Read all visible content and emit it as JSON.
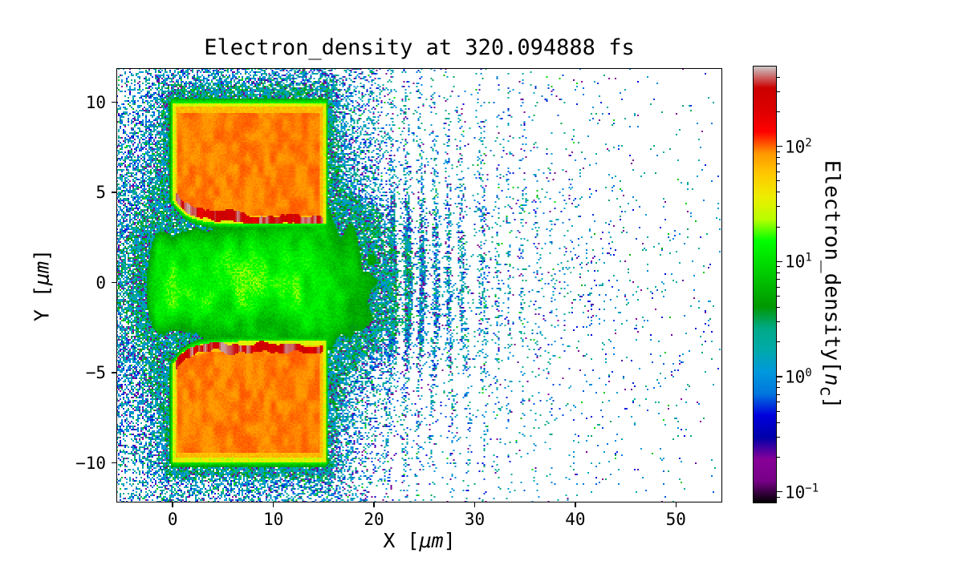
{
  "chart_data": {
    "type": "heatmap",
    "title": "Electron_density at 320.094888 fs",
    "xlabel": "X [μm]",
    "ylabel": "Y [μm]",
    "xlabel_parts": {
      "pre": "X [",
      "unit": "μm",
      "post": "]"
    },
    "ylabel_parts": {
      "pre": "Y [",
      "unit": "μm",
      "post": "]"
    },
    "xlim": [
      -5.6,
      54.6
    ],
    "ylim": [
      -12.2,
      11.9
    ],
    "xticks": [
      0,
      10,
      20,
      30,
      40,
      50
    ],
    "xtick_labels": [
      "0",
      "10",
      "20",
      "30",
      "40",
      "50"
    ],
    "yticks": [
      -10,
      -5,
      0,
      5,
      10
    ],
    "ytick_labels": [
      "−10",
      "−5",
      "0",
      "5",
      "10"
    ],
    "grid": false,
    "colorbar": {
      "label": "Electron_density[n_c]",
      "label_parts": {
        "pre": "Electron_density[",
        "sym": "n",
        "sub": "c",
        "post": "]"
      },
      "scale": "log",
      "colormap": "nipy_spectral",
      "log_range": [
        -1.1,
        2.7
      ],
      "ticks": [
        {
          "value": -1,
          "base": "10",
          "exp": "−1"
        },
        {
          "value": 0,
          "base": "10",
          "exp": "0"
        },
        {
          "value": 1,
          "base": "10",
          "exp": "1"
        },
        {
          "value": 2,
          "base": "10",
          "exp": "2"
        }
      ]
    },
    "sim": {
      "slab_x": [
        0,
        15.2
      ],
      "slab_y_outer": 9.95,
      "edge_base": 3.25,
      "edge_flare": 1.3,
      "edge_scale": 1.4,
      "slab_density_nc": 80,
      "front_density_nc": 300,
      "rim_density_nc": 15,
      "channel_density_nc": 10.5,
      "channel_halfwidth_um": 2.7
    },
    "features": [
      {
        "name": "upper-target-slab",
        "x": [
          0,
          15.2
        ],
        "y": [
          3.4,
          10
        ],
        "density_nc": "≈80–110",
        "appearance": "solid orange overdense slab"
      },
      {
        "name": "lower-target-slab",
        "x": [
          0,
          15.2
        ],
        "y": [
          -10,
          -3.4
        ],
        "density_nc": "≈80–110",
        "appearance": "solid orange overdense slab"
      },
      {
        "name": "upper-heated-front",
        "x": [
          0,
          15
        ],
        "y": "wavy line ≈ 3.5–4.5",
        "density_nc": "≈200–400",
        "appearance": "jagged dark-red line along inner slab surface"
      },
      {
        "name": "lower-heated-front",
        "x": [
          0,
          15
        ],
        "y": "wavy line ≈ −4.5–−3.5",
        "density_nc": "≈200–400",
        "appearance": "jagged dark-red line along inner slab surface"
      },
      {
        "name": "central-plasma-channel",
        "x": [
          -1,
          22
        ],
        "y": [
          -3,
          3
        ],
        "density_nc": "≈5–20",
        "appearance": "turbulent green channel between the slabs"
      },
      {
        "name": "slab-surface-rim",
        "density_nc": "≈10–20",
        "appearance": "thin green outline around both slabs"
      },
      {
        "name": "blowoff-plasma",
        "x": [
          -5.6,
          45
        ],
        "density_nc": "≈0.1–3",
        "appearance": "blue/cyan speckle halo thinning with x, purple dots ≈0.15, vertical striations near x≈22–38"
      }
    ]
  }
}
